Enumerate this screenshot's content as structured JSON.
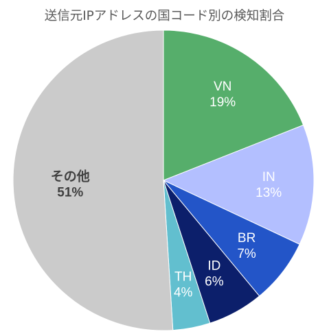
{
  "chart_data": {
    "type": "pie",
    "title": "送信元IPアドレスの国コード別の検知割合",
    "slices": [
      {
        "label": "VN",
        "value": 19,
        "value_label": "19%",
        "color": "#56ae6b"
      },
      {
        "label": "IN",
        "value": 13,
        "value_label": "13%",
        "color": "#b3bfff"
      },
      {
        "label": "BR",
        "value": 7,
        "value_label": "7%",
        "color": "#2355c8"
      },
      {
        "label": "ID",
        "value": 6,
        "value_label": "6%",
        "color": "#0c1f6b"
      },
      {
        "label": "TH",
        "value": 4,
        "value_label": "4%",
        "color": "#62bfcf"
      },
      {
        "label": "その他",
        "value": 51,
        "value_label": "51%",
        "color": "#cbcbcb"
      }
    ],
    "start_angle_deg": 0,
    "direction": "clockwise",
    "legend": "none"
  }
}
